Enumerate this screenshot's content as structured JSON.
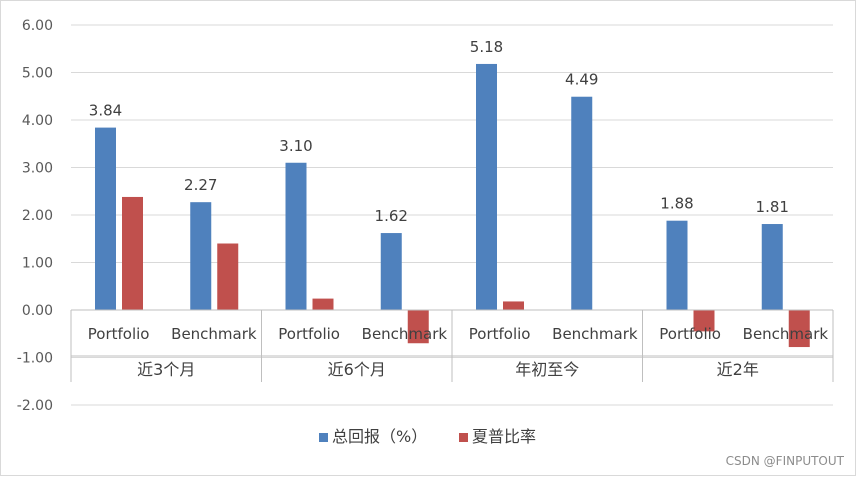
{
  "chart_data": {
    "type": "bar",
    "groups": [
      "近3个月",
      "近6个月",
      "年初至今",
      "近2年"
    ],
    "categories": [
      "Portfolio",
      "Benchmark",
      "Portfolio",
      "Benchmark",
      "Portfolio",
      "Benchmark",
      "Portfolio",
      "Benchmark"
    ],
    "series": [
      {
        "name": "总回报（%）",
        "color": "#4f81bd",
        "values": [
          3.84,
          2.27,
          3.1,
          1.62,
          5.18,
          4.49,
          1.88,
          1.81
        ],
        "labels": [
          "3.84",
          "2.27",
          "3.10",
          "1.62",
          "5.18",
          "4.49",
          "1.88",
          "1.81"
        ]
      },
      {
        "name": "夏普比率",
        "color": "#c0504d",
        "values": [
          2.38,
          1.4,
          0.24,
          -0.7,
          0.18,
          0.0,
          -0.45,
          -0.78
        ]
      }
    ],
    "ylim": [
      -2,
      6
    ],
    "yticks": [
      "-2.00",
      "-1.00",
      "0.00",
      "1.00",
      "2.00",
      "3.00",
      "4.00",
      "5.00",
      "6.00"
    ],
    "grid": true,
    "legend_position": "bottom"
  },
  "watermark": "CSDN @FINPUTOUT"
}
